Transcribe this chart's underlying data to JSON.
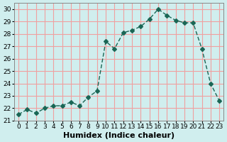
{
  "x": [
    0,
    1,
    2,
    3,
    4,
    5,
    6,
    7,
    8,
    9,
    10,
    11,
    12,
    13,
    14,
    15,
    16,
    17,
    18,
    19,
    20,
    21,
    22,
    23
  ],
  "y": [
    21.5,
    21.9,
    21.6,
    22.0,
    22.2,
    22.2,
    22.5,
    22.2,
    22.9,
    23.4,
    27.4,
    26.8,
    28.1,
    28.3,
    28.6,
    29.2,
    30.0,
    29.5,
    29.1,
    28.9,
    28.9,
    26.8,
    24.0,
    22.6
  ],
  "line_color": "#1a6655",
  "marker": "D",
  "marker_size": 3,
  "bg_color": "#d0eeee",
  "grid_color": "#f0a0a0",
  "title": "",
  "xlabel": "Humidex (Indice chaleur)",
  "ylabel": "",
  "ylim": [
    21,
    30.5
  ],
  "xlim": [
    -0.5,
    23.5
  ],
  "yticks": [
    21,
    22,
    23,
    24,
    25,
    26,
    27,
    28,
    29,
    30
  ],
  "xticks": [
    0,
    1,
    2,
    3,
    4,
    5,
    6,
    7,
    8,
    9,
    10,
    11,
    12,
    13,
    14,
    15,
    16,
    17,
    18,
    19,
    20,
    21,
    22,
    23
  ],
  "tick_fontsize": 6.5,
  "label_fontsize": 8
}
